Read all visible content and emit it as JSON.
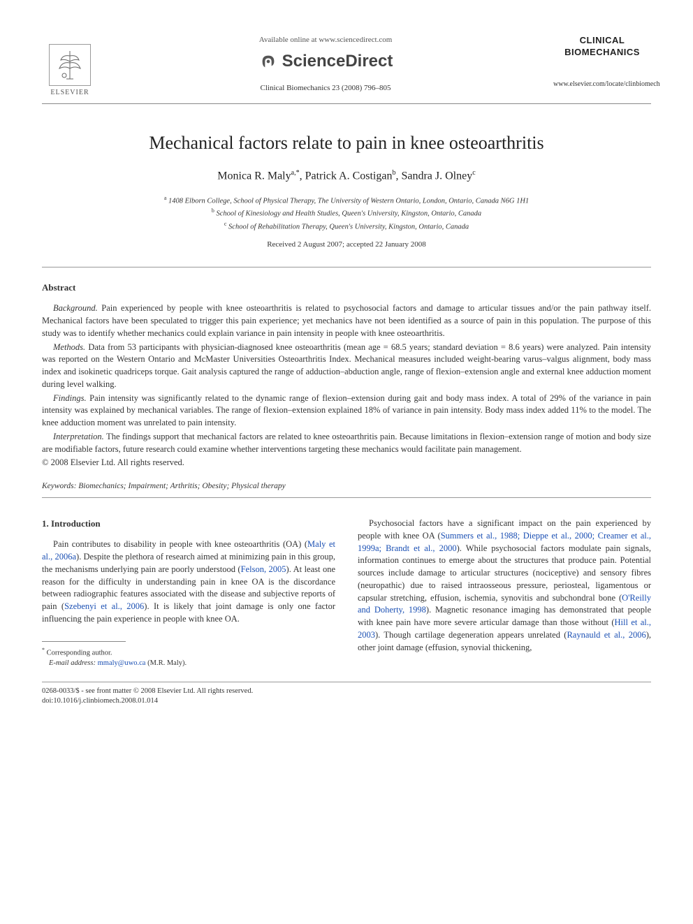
{
  "header": {
    "available_online": "Available online at www.sciencedirect.com",
    "sciencedirect": "ScienceDirect",
    "citation": "Clinical Biomechanics 23 (2008) 796–805",
    "elsevier_label": "ELSEVIER",
    "journal_name_line1": "CLINICAL",
    "journal_name_line2": "BIOMECHANICS",
    "journal_url": "www.elsevier.com/locate/clinbiomech"
  },
  "article": {
    "title": "Mechanical factors relate to pain in knee osteoarthritis",
    "authors_html": "Monica R. Maly<sup>a,*</sup>, Patrick A. Costigan<sup>b</sup>, Sandra J. Olney<sup>c</sup>",
    "affiliations": [
      {
        "sup": "a",
        "text": "1408 Elborn College, School of Physical Therapy, The University of Western Ontario, London, Ontario, Canada N6G 1H1"
      },
      {
        "sup": "b",
        "text": "School of Kinesiology and Health Studies, Queen's University, Kingston, Ontario, Canada"
      },
      {
        "sup": "c",
        "text": "School of Rehabilitation Therapy, Queen's University, Kingston, Ontario, Canada"
      }
    ],
    "dates": "Received 2 August 2007; accepted 22 January 2008"
  },
  "abstract": {
    "heading": "Abstract",
    "paragraphs": [
      {
        "label": "Background.",
        "text": "Pain experienced by people with knee osteoarthritis is related to psychosocial factors and damage to articular tissues and/or the pain pathway itself. Mechanical factors have been speculated to trigger this pain experience; yet mechanics have not been identified as a source of pain in this population. The purpose of this study was to identify whether mechanics could explain variance in pain intensity in people with knee osteoarthritis."
      },
      {
        "label": "Methods.",
        "text": "Data from 53 participants with physician-diagnosed knee osteoarthritis (mean age = 68.5 years; standard deviation = 8.6 years) were analyzed. Pain intensity was reported on the Western Ontario and McMaster Universities Osteoarthritis Index. Mechanical measures included weight-bearing varus–valgus alignment, body mass index and isokinetic quadriceps torque. Gait analysis captured the range of adduction–abduction angle, range of flexion–extension angle and external knee adduction moment during level walking."
      },
      {
        "label": "Findings.",
        "text": "Pain intensity was significantly related to the dynamic range of flexion–extension during gait and body mass index. A total of 29% of the variance in pain intensity was explained by mechanical variables. The range of flexion–extension explained 18% of variance in pain intensity. Body mass index added 11% to the model. The knee adduction moment was unrelated to pain intensity."
      },
      {
        "label": "Interpretation.",
        "text": "The findings support that mechanical factors are related to knee osteoarthritis pain. Because limitations in flexion–extension range of motion and body size are modifiable factors, future research could examine whether interventions targeting these mechanics would facilitate pain management."
      }
    ],
    "copyright": "© 2008 Elsevier Ltd. All rights reserved."
  },
  "keywords": {
    "label": "Keywords:",
    "text": "Biomechanics; Impairment; Arthritis; Obesity; Physical therapy"
  },
  "body": {
    "section_heading": "1. Introduction",
    "col1_p1_pre": "Pain contributes to disability in people with knee osteoarthritis (OA) (",
    "col1_link1": "Maly et al., 2006a",
    "col1_p1_mid1": "). Despite the plethora of research aimed at minimizing pain in this group, the mechanisms underlying pain are poorly understood (",
    "col1_link2": "Felson, 2005",
    "col1_p1_mid2": "). At least one reason for the difficulty in understanding pain in knee OA is the discordance between radiographic features associated with the disease and subjective reports of pain (",
    "col1_link3": "Szebenyi et al., 2006",
    "col1_p1_end": "). It is likely that joint damage is only one factor influencing the pain experience in people with knee OA.",
    "col2_pre": "Psychosocial factors have a significant impact on the pain experienced by people with knee OA (",
    "col2_link1": "Summers et al., 1988; Dieppe et al., 2000; Creamer et al., 1999a; Brandt et al., 2000",
    "col2_mid1": "). While psychosocial factors modulate pain signals, information continues to emerge about the structures that produce pain. Potential sources include damage to articular structures (nociceptive) and sensory fibres (neuropathic) due to raised intraosseous pressure, periosteal, ligamentous or capsular stretching, effusion, ischemia, synovitis and subchondral bone (",
    "col2_link2": "O'Reilly and Doherty, 1998",
    "col2_mid2": "). Magnetic resonance imaging has demonstrated that people with knee pain have more severe articular damage than those without (",
    "col2_link3": "Hill et al., 2003",
    "col2_mid3": "). Though cartilage degeneration appears unrelated (",
    "col2_link4": "Raynauld et al., 2006",
    "col2_end": "), other joint damage (effusion, synovial thickening,"
  },
  "footnote": {
    "corresponding": "Corresponding author.",
    "email_label": "E-mail address:",
    "email": "mmaly@uwo.ca",
    "email_suffix": "(M.R. Maly)."
  },
  "footer": {
    "line1": "0268-0033/$ - see front matter © 2008 Elsevier Ltd. All rights reserved.",
    "line2": "doi:10.1016/j.clinbiomech.2008.01.014"
  },
  "colors": {
    "link": "#1a4fb3",
    "text": "#333333",
    "rule": "#999999"
  }
}
